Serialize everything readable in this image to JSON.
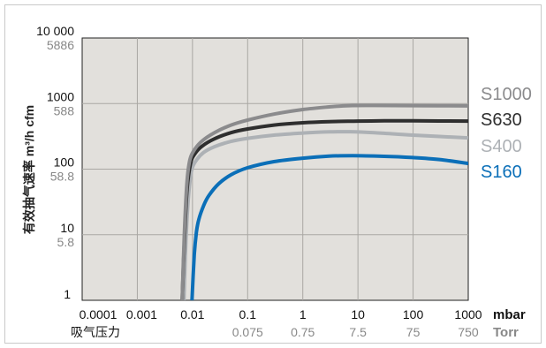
{
  "chart_data": {
    "type": "line",
    "x_scale": "log",
    "y_scale": "log",
    "xlim": [
      0.0001,
      1000
    ],
    "ylim": [
      1,
      10000
    ],
    "grid": true,
    "ylabel": "有效抽气速率 m³/h cfm",
    "y_ticks": [
      {
        "value": 10000,
        "label": "10 000",
        "sublabel": "5886"
      },
      {
        "value": 1000,
        "label": "1000",
        "sublabel": "588"
      },
      {
        "value": 100,
        "label": "100",
        "sublabel": "58.8"
      },
      {
        "value": 10,
        "label": "10",
        "sublabel": "5.8"
      },
      {
        "value": 1,
        "label": "1",
        "sublabel": ""
      }
    ],
    "x_ticks": [
      {
        "value": 0.0001,
        "label": "0.0001",
        "sublabel": ""
      },
      {
        "value": 0.001,
        "label": "0.001",
        "sublabel": ""
      },
      {
        "value": 0.01,
        "label": "0.01",
        "sublabel": ""
      },
      {
        "value": 0.1,
        "label": "0.1",
        "sublabel": "0.075"
      },
      {
        "value": 1,
        "label": "1",
        "sublabel": "0.75"
      },
      {
        "value": 10,
        "label": "10",
        "sublabel": "7.5"
      },
      {
        "value": 100,
        "label": "100",
        "sublabel": "75"
      },
      {
        "value": 1000,
        "label": "1000",
        "sublabel": "750"
      }
    ],
    "x_unit_primary": "mbar",
    "x_unit_secondary": "Torr",
    "xlabel": "吸气压力",
    "series": [
      {
        "name": "S1000",
        "color": "#8b8b8d",
        "x": [
          0.0065,
          0.0071,
          0.0079,
          0.009,
          0.011,
          0.015,
          0.025,
          0.05,
          0.1,
          0.3,
          1,
          3,
          7,
          20,
          100,
          1000
        ],
        "y": [
          1,
          10,
          60,
          140,
          200,
          270,
          360,
          470,
          560,
          690,
          810,
          890,
          930,
          935,
          930,
          920
        ]
      },
      {
        "name": "S630",
        "color": "#2e2e2e",
        "x": [
          0.0065,
          0.0072,
          0.008,
          0.0092,
          0.011,
          0.015,
          0.025,
          0.05,
          0.1,
          0.3,
          1,
          3,
          10,
          30,
          100,
          1000
        ],
        "y": [
          1,
          10,
          50,
          120,
          170,
          225,
          290,
          360,
          410,
          470,
          510,
          530,
          540,
          545,
          545,
          540
        ]
      },
      {
        "name": "S400",
        "color": "#adb1b5",
        "x": [
          0.007,
          0.0077,
          0.0086,
          0.0098,
          0.012,
          0.016,
          0.025,
          0.05,
          0.1,
          0.3,
          1,
          3,
          7,
          20,
          100,
          1000
        ],
        "y": [
          1,
          10,
          45,
          100,
          140,
          180,
          220,
          265,
          295,
          330,
          355,
          370,
          372,
          360,
          330,
          300
        ]
      },
      {
        "name": "S160",
        "color": "#0b6fb8",
        "x": [
          0.0098,
          0.0108,
          0.0118,
          0.013,
          0.016,
          0.02,
          0.03,
          0.05,
          0.1,
          0.3,
          1,
          3,
          8,
          30,
          100,
          300,
          1000
        ],
        "y": [
          1,
          5,
          11,
          17,
          28,
          40,
          60,
          82,
          105,
          130,
          147,
          158,
          160,
          157,
          150,
          140,
          122
        ]
      }
    ]
  }
}
